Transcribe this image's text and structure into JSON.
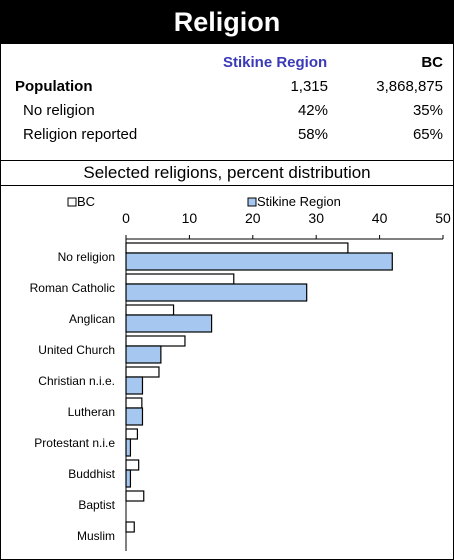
{
  "header": {
    "title": "Religion"
  },
  "stats": {
    "col_region": "Stikine Region",
    "col_bc": "BC",
    "rows": [
      {
        "label": "Population",
        "region": "1,315",
        "bc": "3,868,875"
      },
      {
        "label": "No religion",
        "region": "42%",
        "bc": "35%"
      },
      {
        "label": "Religion reported",
        "region": "58%",
        "bc": "65%"
      }
    ]
  },
  "chart_title": "Selected religions, percent distribution",
  "colors": {
    "region_fill": "#a6c8f0",
    "bc_fill": "#ffffff",
    "stroke": "#000000",
    "header_bg": "#000000"
  },
  "chart_data": {
    "type": "bar",
    "orientation": "horizontal",
    "categories": [
      "No religion",
      "Roman Catholic",
      "Anglican",
      "United Church",
      "Christian n.i.e.",
      "Lutheran",
      "Protestant n.i.e",
      "Buddhist",
      "Baptist",
      "Muslim"
    ],
    "series": [
      {
        "name": "BC",
        "values": [
          35.0,
          17.0,
          7.5,
          9.3,
          5.2,
          2.5,
          1.8,
          2.0,
          2.8,
          1.3
        ]
      },
      {
        "name": "Stikine Region",
        "values": [
          42.0,
          28.5,
          13.5,
          5.5,
          2.6,
          2.6,
          0.7,
          0.7,
          0,
          0
        ]
      }
    ],
    "xlim": [
      0,
      50
    ],
    "xticks": [
      "0",
      "10",
      "20",
      "30",
      "40",
      "50"
    ],
    "legend_position": "top",
    "grid": false
  }
}
